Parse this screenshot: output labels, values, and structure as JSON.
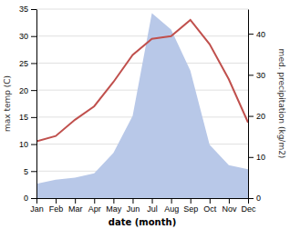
{
  "chart_data": {
    "type": "line",
    "xlabel": "date (month)",
    "ylabel": "max temp (C)",
    "y2label": "med. precipitation (kg/m2)",
    "categories": [
      "Jan",
      "Feb",
      "Mar",
      "Apr",
      "May",
      "Jun",
      "Jul",
      "Aug",
      "Sep",
      "Oct",
      "Nov",
      "Dec"
    ],
    "series": [
      {
        "type": "area",
        "axis": "y2",
        "color": "#b8c8e8",
        "values": [
          3.5,
          4.5,
          5.0,
          6.0,
          11.0,
          20.0,
          45.0,
          41.0,
          31.0,
          13.0,
          8.0,
          7.0
        ]
      },
      {
        "type": "line",
        "color": "#c0504d",
        "values": [
          10.5,
          11.5,
          14.5,
          17.0,
          21.5,
          26.5,
          29.5,
          30.0,
          33.0,
          28.5,
          22.0,
          14.0
        ]
      }
    ],
    "ylim": [
      0,
      35
    ],
    "yticks": [
      0,
      5,
      10,
      15,
      20,
      25,
      30,
      35
    ],
    "y2lim": [
      0,
      46
    ],
    "y2ticks": [
      0,
      10,
      20,
      30,
      40
    ],
    "grid": true
  }
}
